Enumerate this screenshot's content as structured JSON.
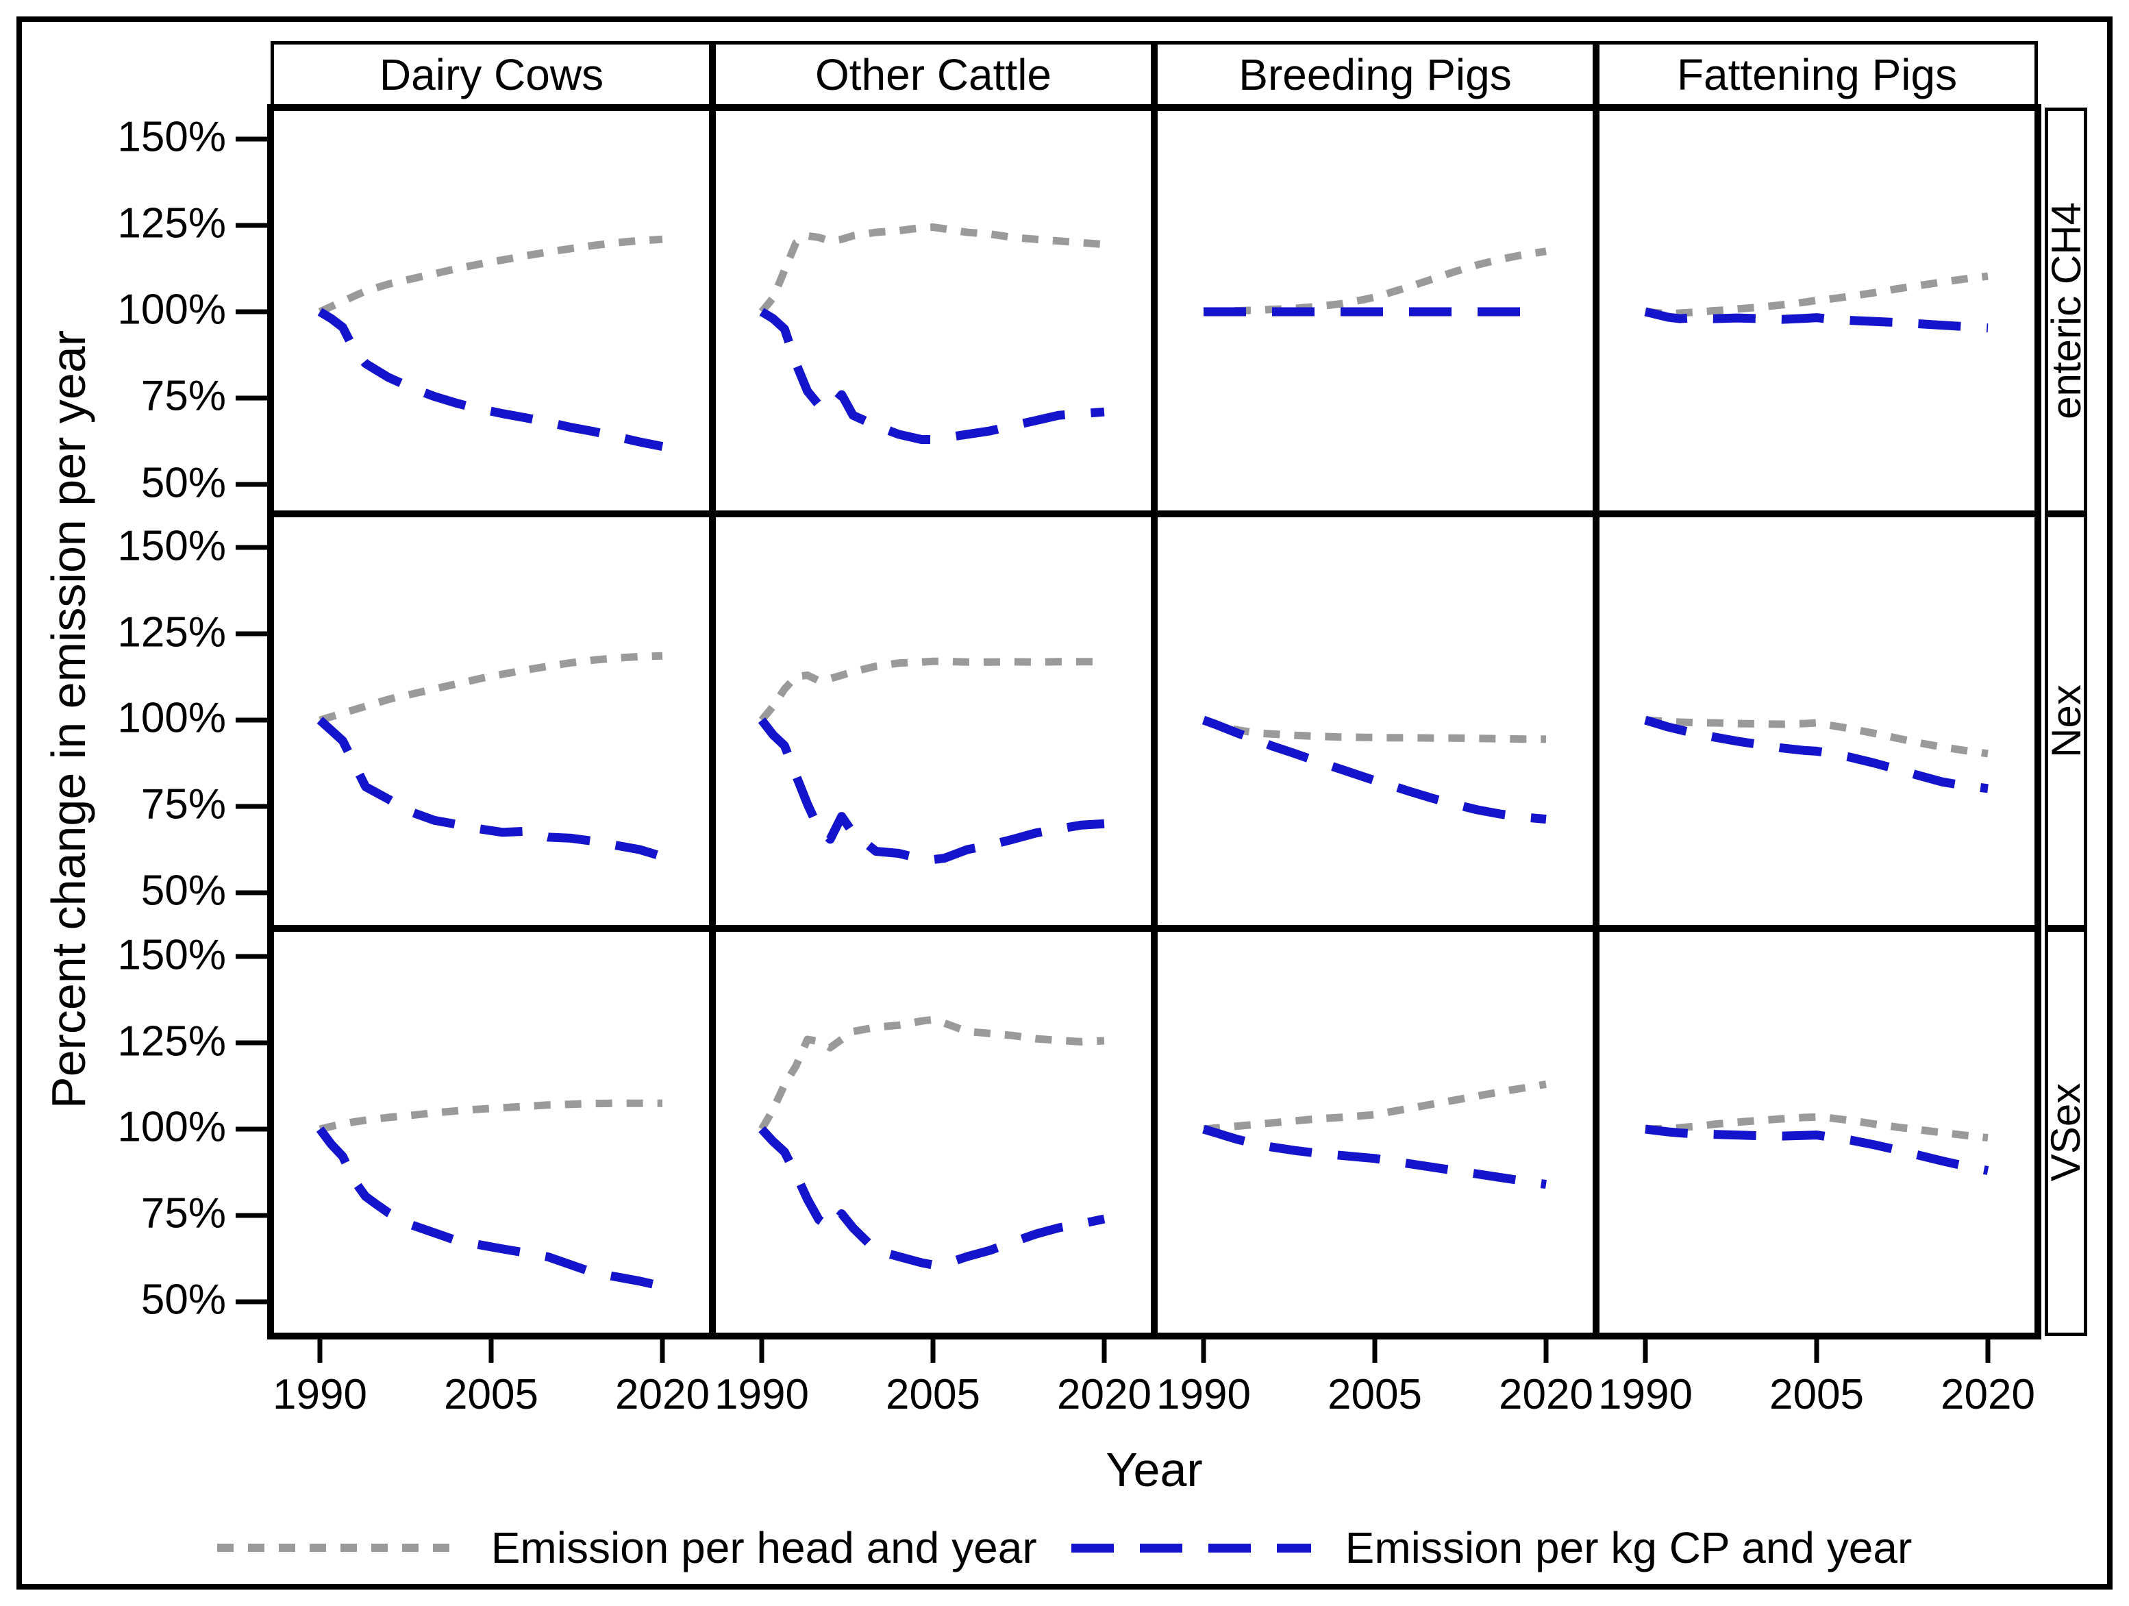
{
  "chart_data": {
    "type": "line",
    "title": "",
    "xlabel": "Year",
    "ylabel": "Percent change in emission per year",
    "columns": [
      "Dairy Cows",
      "Other Cattle",
      "Breeding Pigs",
      "Fattening Pigs"
    ],
    "rows": [
      "enteric CH4",
      "Nex",
      "VSex"
    ],
    "x_tick_labels": [
      "1990",
      "2005",
      "2020"
    ],
    "y_tick_labels": [
      "150%",
      "125%",
      "100%",
      "75%",
      "50%"
    ],
    "x_range": [
      1990,
      2020
    ],
    "ylim_percent": [
      42,
      159
    ],
    "grid": "off",
    "legend_position": "bottom",
    "colors": {
      "head": "#9a9a9a",
      "cp": "#1414cc"
    },
    "series_labels": {
      "head": "Emission per head and year",
      "cp": "Emission per kg CP and year"
    },
    "years": [
      1990,
      1991,
      1992,
      1993,
      1994,
      1995,
      1996,
      1997,
      1998,
      2000,
      2002,
      2004,
      2005,
      2006,
      2008,
      2010,
      2012,
      2014,
      2016,
      2018,
      2020
    ],
    "panels": [
      {
        "row": "enteric CH4",
        "column": "Dairy Cows",
        "head": [
          100,
          101.5,
          103,
          104.5,
          106,
          107,
          108,
          108.8,
          109.5,
          111,
          112.5,
          113.8,
          114.4,
          115,
          116.2,
          117.3,
          118.3,
          119.2,
          120,
          120.6,
          121
        ],
        "cp": [
          100,
          98,
          95.5,
          89,
          85,
          83,
          81,
          79.5,
          78,
          75.5,
          73.5,
          71.8,
          71.2,
          70.5,
          69.3,
          68,
          66.5,
          65.3,
          63.8,
          62.3,
          61
        ]
      },
      {
        "row": "enteric CH4",
        "column": "Other Cattle",
        "head": [
          100,
          104,
          112,
          120,
          122,
          121.5,
          120.5,
          121,
          122,
          123,
          123.5,
          124.3,
          124.5,
          124,
          123,
          122.5,
          121.5,
          121,
          120.5,
          120,
          119.5
        ],
        "cp": [
          100,
          98,
          95,
          85,
          77,
          73,
          72,
          76,
          70,
          67,
          64.5,
          63,
          63,
          63.5,
          64.5,
          65.5,
          67,
          68.5,
          70,
          70.5,
          71
        ]
      },
      {
        "row": "enteric CH4",
        "column": "Breeding Pigs",
        "head": [
          100,
          100.1,
          100.2,
          100.3,
          100.4,
          100.5,
          100.7,
          100.8,
          101,
          101.5,
          102.3,
          103.5,
          104.2,
          105.2,
          107.2,
          109.4,
          111.6,
          113.6,
          115.2,
          116.5,
          117.5
        ],
        "cp": [
          100,
          100,
          100,
          100,
          100,
          100,
          100,
          100,
          100,
          100,
          100,
          100,
          100,
          100,
          100,
          100,
          100,
          100,
          100,
          100,
          100
        ]
      },
      {
        "row": "enteric CH4",
        "column": "Fattening Pigs",
        "head": [
          100,
          99.7,
          99.4,
          99.6,
          99.8,
          100,
          100.3,
          100.5,
          100.8,
          101.3,
          102,
          102.8,
          103.3,
          103.6,
          104.5,
          105.5,
          106.6,
          107.6,
          108.6,
          109.5,
          110.3
        ],
        "cp": [
          100,
          99.2,
          98.4,
          98,
          98.2,
          98.1,
          98,
          98.1,
          98.2,
          98,
          97.8,
          98.1,
          98.3,
          97.9,
          97.5,
          97.2,
          96.9,
          96.5,
          96.1,
          95.7,
          95.3
        ]
      },
      {
        "row": "Nex",
        "column": "Dairy Cows",
        "head": [
          100,
          101,
          102,
          103,
          104,
          105,
          106,
          106.8,
          107.5,
          109,
          110.5,
          112,
          112.7,
          113.3,
          114.5,
          115.6,
          116.6,
          117.4,
          118,
          118.4,
          118.6
        ],
        "cp": [
          100,
          97,
          94,
          87.4,
          80.7,
          78.9,
          77.1,
          75.2,
          73.4,
          71,
          69.8,
          68.5,
          68,
          67.5,
          67.8,
          66.1,
          65.8,
          64.9,
          63.7,
          62.5,
          60.5
        ]
      },
      {
        "row": "Nex",
        "column": "Other Cattle",
        "head": [
          100,
          104,
          109,
          112.6,
          113,
          111.4,
          112,
          113,
          114,
          115.6,
          116.5,
          116.8,
          117,
          117,
          116.8,
          116.8,
          116.9,
          116.8,
          116.9,
          116.9,
          116.9
        ],
        "cp": [
          100,
          95.7,
          92.6,
          84,
          75.7,
          68.5,
          65.5,
          72.1,
          67.3,
          62,
          61.4,
          59.8,
          59.6,
          60,
          62.5,
          63.8,
          65.5,
          67.3,
          68.5,
          69.6,
          70
        ]
      },
      {
        "row": "Nex",
        "column": "Breeding Pigs",
        "head": [
          100,
          99,
          97.8,
          97.1,
          96.6,
          96.2,
          96,
          95.8,
          95.6,
          95.3,
          95.1,
          95,
          95,
          94.9,
          94.9,
          94.8,
          94.8,
          94.7,
          94.6,
          94.5,
          94.5
        ],
        "cp": [
          100,
          98.8,
          97.5,
          96.2,
          95,
          93.8,
          92.5,
          91.4,
          90.3,
          88,
          85.8,
          83.6,
          82.5,
          81.5,
          79.4,
          77.4,
          75.6,
          74,
          72.8,
          71.9,
          71.3
        ]
      },
      {
        "row": "Nex",
        "column": "Fattening Pigs",
        "head": [
          100,
          99.8,
          99.6,
          99.4,
          99.3,
          99.2,
          99.2,
          99.1,
          99,
          98.9,
          98.8,
          99,
          99.2,
          98.6,
          97.5,
          96.2,
          94.8,
          93.4,
          92.2,
          91.2,
          90.3
        ],
        "cp": [
          100,
          99,
          98,
          97.2,
          96.4,
          95.7,
          95.1,
          94.5,
          93.9,
          92.9,
          91.9,
          91.2,
          91,
          90.5,
          89.2,
          87.6,
          85.8,
          83.9,
          82.1,
          81,
          80.2
        ]
      },
      {
        "row": "VSex",
        "column": "Dairy Cows",
        "head": [
          100,
          100.8,
          101.5,
          102.1,
          102.6,
          103,
          103.4,
          103.7,
          104,
          104.7,
          105.3,
          105.8,
          106,
          106.2,
          106.6,
          107,
          107.2,
          107.4,
          107.5,
          107.5,
          107.5
        ],
        "cp": [
          100,
          95.6,
          92.1,
          85.1,
          80.5,
          78.1,
          75.8,
          74,
          72.3,
          70,
          67.7,
          66.5,
          65.9,
          65.3,
          64.2,
          63,
          60.7,
          58.4,
          57.2,
          56,
          54.5
        ]
      },
      {
        "row": "VSex",
        "column": "Other Cattle",
        "head": [
          100,
          105.7,
          112.9,
          118.3,
          126,
          125.4,
          123.6,
          126,
          128.3,
          129.5,
          130.1,
          131.3,
          131.7,
          130.7,
          128.3,
          127.7,
          127.1,
          126.2,
          125.7,
          125.3,
          125.6
        ],
        "cp": [
          100,
          96.4,
          93.4,
          86.9,
          79.7,
          73.8,
          71.4,
          75.5,
          71.4,
          64.9,
          63.1,
          61.3,
          60.7,
          60.9,
          63.1,
          64.9,
          67.3,
          69.6,
          71.4,
          72.6,
          74
        ]
      },
      {
        "row": "VSex",
        "column": "Breeding Pigs",
        "head": [
          100,
          100.3,
          100.6,
          100.9,
          101.2,
          101.5,
          101.8,
          102.1,
          102.4,
          103,
          103.4,
          103.9,
          104.2,
          104.8,
          106,
          107.2,
          108.4,
          109.6,
          110.8,
          111.9,
          113
        ],
        "cp": [
          100,
          99,
          98,
          97,
          96.2,
          95.4,
          94.8,
          94.3,
          93.8,
          93,
          92.4,
          91.8,
          91.5,
          91,
          90,
          89,
          88,
          87,
          86,
          85,
          84
        ]
      },
      {
        "row": "VSex",
        "column": "Fattening Pigs",
        "head": [
          100,
          100.1,
          100.2,
          100.4,
          100.7,
          101,
          101.4,
          101.7,
          102,
          102.5,
          103,
          103.4,
          103.5,
          103.3,
          102.5,
          101.5,
          100.6,
          99.8,
          99,
          98.2,
          97.5
        ],
        "cp": [
          100,
          99.6,
          99.2,
          98.9,
          98.7,
          98.6,
          98.5,
          98.4,
          98.3,
          98.1,
          98,
          98.2,
          98.3,
          97.8,
          96.8,
          95.5,
          94,
          92.4,
          90.8,
          89.3,
          88
        ]
      }
    ]
  }
}
